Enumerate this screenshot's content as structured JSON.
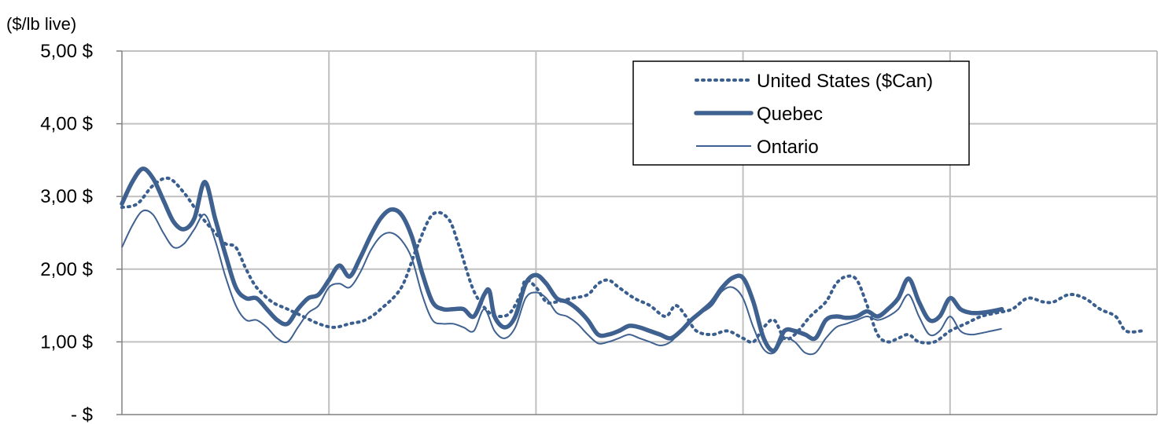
{
  "chart_data": {
    "type": "line",
    "ylabel": "($/lb live)",
    "ylim": [
      0,
      5
    ],
    "yticks": [
      {
        "value": 5,
        "label": "5,00  $"
      },
      {
        "value": 4,
        "label": "4,00  $"
      },
      {
        "value": 3,
        "label": "3,00  $"
      },
      {
        "value": 2,
        "label": "2,00  $"
      },
      {
        "value": 1,
        "label": "1,00  $"
      },
      {
        "value": 0,
        "label": "-    $"
      }
    ],
    "xlim": [
      0,
      100
    ],
    "x_gridlines": [
      0,
      20,
      40,
      60,
      80,
      100
    ],
    "grid": true,
    "legend_position": "top-right",
    "series": [
      {
        "name": "United States ($Can)",
        "style": "dotted",
        "color": "#3a5f8f",
        "points": [
          [
            0,
            2.85
          ],
          [
            1.5,
            2.9
          ],
          [
            3,
            3.15
          ],
          [
            4.5,
            3.25
          ],
          [
            6,
            3.05
          ],
          [
            7.5,
            2.75
          ],
          [
            9,
            2.5
          ],
          [
            10,
            2.35
          ],
          [
            11,
            2.3
          ],
          [
            12,
            2.0
          ],
          [
            13,
            1.75
          ],
          [
            14.5,
            1.55
          ],
          [
            16,
            1.45
          ],
          [
            17.5,
            1.35
          ],
          [
            19,
            1.25
          ],
          [
            20.5,
            1.2
          ],
          [
            22,
            1.25
          ],
          [
            23.5,
            1.3
          ],
          [
            25,
            1.45
          ],
          [
            27,
            1.75
          ],
          [
            28.5,
            2.3
          ],
          [
            30,
            2.75
          ],
          [
            31.5,
            2.7
          ],
          [
            32.5,
            2.35
          ],
          [
            34,
            1.7
          ],
          [
            35.5,
            1.4
          ],
          [
            36.5,
            1.35
          ],
          [
            37.5,
            1.4
          ],
          [
            38.5,
            1.65
          ],
          [
            39,
            1.85
          ],
          [
            40,
            1.75
          ],
          [
            41,
            1.55
          ],
          [
            42,
            1.55
          ],
          [
            43.5,
            1.6
          ],
          [
            45,
            1.65
          ],
          [
            46,
            1.8
          ],
          [
            47,
            1.85
          ],
          [
            48,
            1.75
          ],
          [
            49.5,
            1.6
          ],
          [
            51,
            1.5
          ],
          [
            52.5,
            1.35
          ],
          [
            53.5,
            1.5
          ],
          [
            54.5,
            1.35
          ],
          [
            55.5,
            1.15
          ],
          [
            57,
            1.1
          ],
          [
            58.5,
            1.15
          ],
          [
            60,
            1.05
          ],
          [
            61,
            1.0
          ],
          [
            62,
            1.2
          ],
          [
            63,
            1.3
          ],
          [
            64,
            1.05
          ],
          [
            65,
            1.1
          ],
          [
            66.5,
            1.35
          ],
          [
            68,
            1.55
          ],
          [
            69,
            1.8
          ],
          [
            70,
            1.9
          ],
          [
            71,
            1.85
          ],
          [
            72,
            1.5
          ],
          [
            73,
            1.1
          ],
          [
            74,
            1.0
          ],
          [
            75,
            1.05
          ],
          [
            76,
            1.1
          ],
          [
            77,
            1.0
          ],
          [
            78.5,
            1.0
          ],
          [
            80,
            1.15
          ],
          [
            81.5,
            1.25
          ],
          [
            83,
            1.35
          ],
          [
            84.5,
            1.4
          ],
          [
            86,
            1.45
          ],
          [
            87.5,
            1.6
          ],
          [
            89,
            1.55
          ],
          [
            90,
            1.55
          ],
          [
            91.5,
            1.65
          ],
          [
            93,
            1.6
          ],
          [
            94.5,
            1.45
          ],
          [
            96,
            1.35
          ],
          [
            97,
            1.15
          ],
          [
            98.5,
            1.15
          ]
        ]
      },
      {
        "name": "Quebec",
        "style": "thick",
        "color": "#3f6190",
        "points": [
          [
            0,
            2.9
          ],
          [
            1,
            3.2
          ],
          [
            2,
            3.38
          ],
          [
            3,
            3.25
          ],
          [
            4,
            2.95
          ],
          [
            5,
            2.65
          ],
          [
            6,
            2.55
          ],
          [
            7,
            2.7
          ],
          [
            8,
            3.2
          ],
          [
            9,
            2.7
          ],
          [
            10,
            2.2
          ],
          [
            11,
            1.75
          ],
          [
            12,
            1.6
          ],
          [
            13,
            1.6
          ],
          [
            14,
            1.45
          ],
          [
            15,
            1.3
          ],
          [
            16,
            1.25
          ],
          [
            17,
            1.45
          ],
          [
            18,
            1.6
          ],
          [
            19,
            1.65
          ],
          [
            20,
            1.85
          ],
          [
            21,
            2.05
          ],
          [
            22,
            1.9
          ],
          [
            23,
            2.15
          ],
          [
            24,
            2.45
          ],
          [
            25,
            2.7
          ],
          [
            26,
            2.82
          ],
          [
            27,
            2.75
          ],
          [
            28,
            2.45
          ],
          [
            29,
            1.95
          ],
          [
            30,
            1.55
          ],
          [
            31,
            1.45
          ],
          [
            32,
            1.45
          ],
          [
            33,
            1.45
          ],
          [
            34,
            1.35
          ],
          [
            35,
            1.65
          ],
          [
            35.5,
            1.7
          ],
          [
            36,
            1.35
          ],
          [
            37,
            1.2
          ],
          [
            38,
            1.35
          ],
          [
            39,
            1.8
          ],
          [
            40,
            1.92
          ],
          [
            41,
            1.8
          ],
          [
            42,
            1.6
          ],
          [
            43,
            1.55
          ],
          [
            44,
            1.45
          ],
          [
            45,
            1.3
          ],
          [
            46,
            1.1
          ],
          [
            47,
            1.1
          ],
          [
            48,
            1.15
          ],
          [
            49,
            1.22
          ],
          [
            50,
            1.2
          ],
          [
            51,
            1.15
          ],
          [
            52,
            1.1
          ],
          [
            53,
            1.05
          ],
          [
            54,
            1.15
          ],
          [
            55,
            1.3
          ],
          [
            56,
            1.42
          ],
          [
            57,
            1.55
          ],
          [
            58,
            1.75
          ],
          [
            59,
            1.88
          ],
          [
            60,
            1.88
          ],
          [
            61,
            1.55
          ],
          [
            62,
            1.05
          ],
          [
            63,
            0.88
          ],
          [
            64,
            1.15
          ],
          [
            65,
            1.15
          ],
          [
            66,
            1.1
          ],
          [
            67,
            1.05
          ],
          [
            68,
            1.3
          ],
          [
            69,
            1.35
          ],
          [
            70,
            1.33
          ],
          [
            71,
            1.35
          ],
          [
            72,
            1.42
          ],
          [
            73,
            1.35
          ],
          [
            74,
            1.45
          ],
          [
            75,
            1.6
          ],
          [
            76,
            1.87
          ],
          [
            77,
            1.55
          ],
          [
            78,
            1.3
          ],
          [
            79,
            1.35
          ],
          [
            80,
            1.6
          ],
          [
            81,
            1.45
          ],
          [
            82,
            1.4
          ],
          [
            83,
            1.4
          ],
          [
            84,
            1.42
          ],
          [
            85,
            1.45
          ]
        ]
      },
      {
        "name": "Ontario",
        "style": "thin",
        "color": "#3f6190",
        "points": [
          [
            0,
            2.3
          ],
          [
            1,
            2.6
          ],
          [
            2,
            2.8
          ],
          [
            3,
            2.75
          ],
          [
            4,
            2.5
          ],
          [
            5,
            2.3
          ],
          [
            6,
            2.35
          ],
          [
            7,
            2.55
          ],
          [
            8,
            2.75
          ],
          [
            9,
            2.4
          ],
          [
            10,
            1.9
          ],
          [
            11,
            1.5
          ],
          [
            12,
            1.3
          ],
          [
            13,
            1.3
          ],
          [
            14,
            1.2
          ],
          [
            15,
            1.05
          ],
          [
            16,
            1.0
          ],
          [
            17,
            1.2
          ],
          [
            18,
            1.4
          ],
          [
            19,
            1.5
          ],
          [
            20,
            1.75
          ],
          [
            21,
            1.8
          ],
          [
            22,
            1.75
          ],
          [
            23,
            1.95
          ],
          [
            24,
            2.25
          ],
          [
            25,
            2.45
          ],
          [
            26,
            2.5
          ],
          [
            27,
            2.4
          ],
          [
            28,
            2.15
          ],
          [
            29,
            1.65
          ],
          [
            30,
            1.3
          ],
          [
            31,
            1.25
          ],
          [
            32,
            1.25
          ],
          [
            33,
            1.2
          ],
          [
            34,
            1.15
          ],
          [
            35,
            1.45
          ],
          [
            36,
            1.15
          ],
          [
            37,
            1.05
          ],
          [
            38,
            1.2
          ],
          [
            39,
            1.6
          ],
          [
            40,
            1.68
          ],
          [
            41,
            1.6
          ],
          [
            42,
            1.4
          ],
          [
            43,
            1.35
          ],
          [
            44,
            1.25
          ],
          [
            45,
            1.1
          ],
          [
            46,
            0.98
          ],
          [
            47,
            1.0
          ],
          [
            48,
            1.05
          ],
          [
            49,
            1.1
          ],
          [
            50,
            1.05
          ],
          [
            51,
            1.0
          ],
          [
            52,
            0.95
          ],
          [
            53,
            1.0
          ],
          [
            54,
            1.15
          ],
          [
            55,
            1.3
          ],
          [
            56,
            1.4
          ],
          [
            57,
            1.5
          ],
          [
            58,
            1.7
          ],
          [
            59,
            1.75
          ],
          [
            60,
            1.6
          ],
          [
            61,
            1.2
          ],
          [
            62,
            0.9
          ],
          [
            63,
            0.85
          ],
          [
            64,
            1.05
          ],
          [
            65,
            1.0
          ],
          [
            66,
            0.85
          ],
          [
            67,
            0.85
          ],
          [
            68,
            1.05
          ],
          [
            69,
            1.2
          ],
          [
            70,
            1.25
          ],
          [
            71,
            1.3
          ],
          [
            72,
            1.35
          ],
          [
            73,
            1.3
          ],
          [
            74,
            1.35
          ],
          [
            75,
            1.45
          ],
          [
            76,
            1.65
          ],
          [
            77,
            1.35
          ],
          [
            78,
            1.1
          ],
          [
            79,
            1.15
          ],
          [
            80,
            1.35
          ],
          [
            81,
            1.15
          ],
          [
            82,
            1.1
          ],
          [
            83,
            1.12
          ],
          [
            84,
            1.15
          ],
          [
            85,
            1.18
          ]
        ]
      }
    ]
  }
}
